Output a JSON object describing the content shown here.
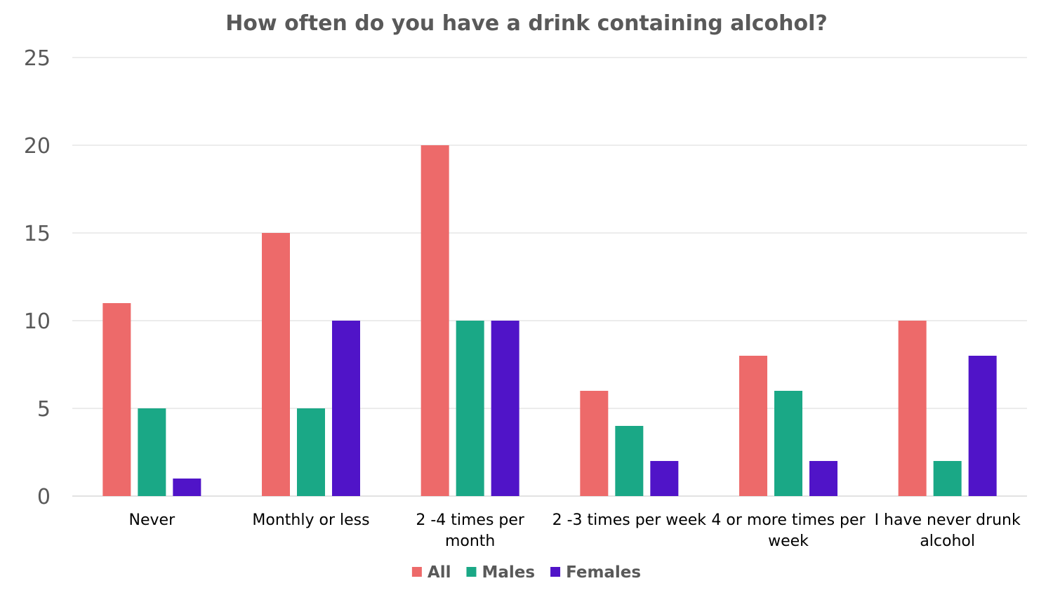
{
  "chart_data": {
    "type": "bar",
    "title": "How often do you have a drink containing alcohol?",
    "categories": [
      [
        "Never"
      ],
      [
        "Monthly or less"
      ],
      [
        "2 -4 times per",
        "month"
      ],
      [
        "2 -3 times per week"
      ],
      [
        "4 or more times per",
        "week"
      ],
      [
        "I have never drunk",
        "alcohol"
      ]
    ],
    "series": [
      {
        "name": "All",
        "color": "#ed6a6a",
        "values": [
          11,
          15,
          20,
          6,
          8,
          10
        ]
      },
      {
        "name": "Males",
        "color": "#1aa886",
        "values": [
          5,
          5,
          10,
          4,
          6,
          2
        ]
      },
      {
        "name": "Females",
        "color": "#5014c8",
        "values": [
          1,
          10,
          10,
          2,
          2,
          8
        ]
      }
    ],
    "ylim": [
      0,
      25
    ],
    "yticks": [
      "0",
      "5",
      "10",
      "15",
      "20",
      "25"
    ],
    "grid": true,
    "legend_position": "bottom-center",
    "xlabel": "",
    "ylabel": ""
  }
}
